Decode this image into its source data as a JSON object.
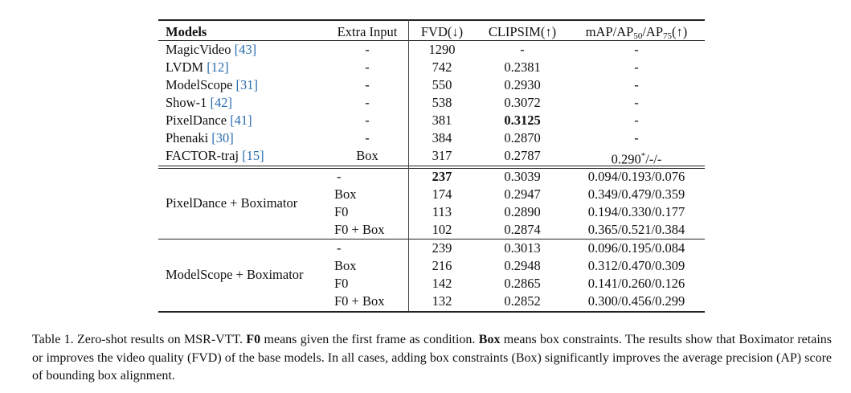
{
  "table": {
    "headers": {
      "models": "Models",
      "extra_input": "Extra Input",
      "fvd": "FVD(↓)",
      "clipsim": "CLIPSIM(↑)",
      "map_prefix": "mAP/AP",
      "map_sub1": "50",
      "map_mid": "/AP",
      "map_sub2": "75",
      "map_suffix": "(↑)"
    },
    "baselines": [
      {
        "name": "MagicVideo ",
        "ref": "[43]",
        "extra": "-",
        "fvd": "1290",
        "clipsim": "-",
        "map": "-"
      },
      {
        "name": "LVDM ",
        "ref": "[12]",
        "extra": "-",
        "fvd": "742",
        "clipsim": "0.2381",
        "map": "-"
      },
      {
        "name": "ModelScope ",
        "ref": "[31]",
        "extra": "-",
        "fvd": "550",
        "clipsim": "0.2930",
        "map": "-"
      },
      {
        "name": "Show-1 ",
        "ref": "[42]",
        "extra": "-",
        "fvd": "538",
        "clipsim": "0.3072",
        "map": "-"
      },
      {
        "name": "PixelDance ",
        "ref": "[41]",
        "extra": "-",
        "fvd": "381",
        "clipsim": "0.3125",
        "map": "-"
      },
      {
        "name": "Phenaki ",
        "ref": "[30]",
        "extra": "-",
        "fvd": "384",
        "clipsim": "0.2870",
        "map": "-"
      },
      {
        "name": "FACTOR-traj ",
        "ref": "[15]",
        "extra": "Box",
        "fvd": "317",
        "clipsim": "0.2787",
        "map_main": "0.290",
        "map_sup": "*",
        "map_rest": "/-/-"
      }
    ],
    "groups": [
      {
        "name": "PixelDance + Boximator",
        "rows": [
          {
            "extra": "-",
            "fvd": "237",
            "clipsim": "0.3039",
            "map": "0.094/0.193/0.076"
          },
          {
            "extra": "Box",
            "fvd": "174",
            "clipsim": "0.2947",
            "map": "0.349/0.479/0.359"
          },
          {
            "extra": "F0",
            "fvd": "113",
            "clipsim": "0.2890",
            "map": "0.194/0.330/0.177"
          },
          {
            "extra": "F0 + Box",
            "fvd": "102",
            "clipsim": "0.2874",
            "map": "0.365/0.521/0.384"
          }
        ]
      },
      {
        "name": "ModelScope + Boximator",
        "rows": [
          {
            "extra": "-",
            "fvd": "239",
            "clipsim": "0.3013",
            "map": "0.096/0.195/0.084"
          },
          {
            "extra": "Box",
            "fvd": "216",
            "clipsim": "0.2948",
            "map": "0.312/0.470/0.309"
          },
          {
            "extra": "F0",
            "fvd": "142",
            "clipsim": "0.2865",
            "map": "0.141/0.260/0.126"
          },
          {
            "extra": "F0 + Box",
            "fvd": "132",
            "clipsim": "0.2852",
            "map": "0.300/0.456/0.299"
          }
        ]
      }
    ]
  },
  "caption": {
    "t1": "Table 1.  Zero-shot results on MSR-VTT. ",
    "b1": "F0",
    "t2": " means given the first frame as condition. ",
    "b2": "Box",
    "t3": " means box constraints. The results show that Boximator retains or improves the video quality (FVD) of the base models. In all cases, adding box constraints (Box) significantly improves the average precision (AP) score of bounding box alignment."
  }
}
